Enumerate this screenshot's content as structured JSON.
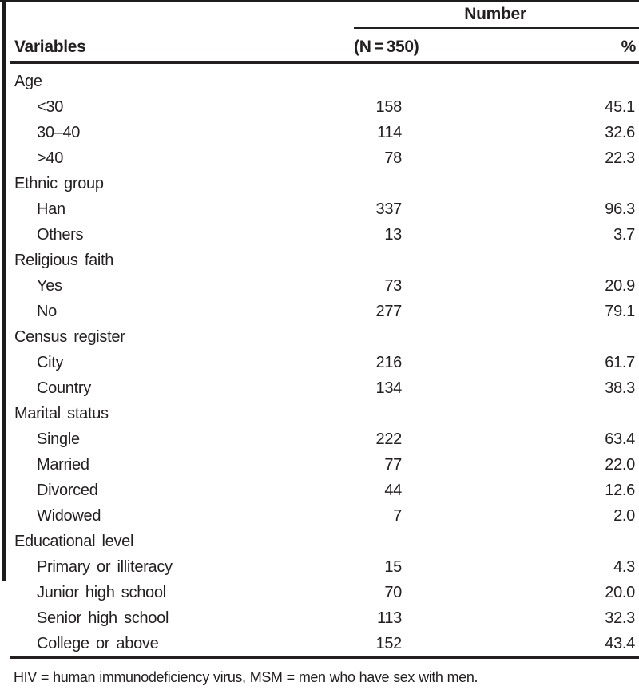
{
  "table": {
    "columns": {
      "variables": "Variables",
      "number_group": "Number",
      "number_sub": "(N = 350)",
      "percent": "%"
    },
    "sections": [
      {
        "label": "Age",
        "rows": [
          {
            "label": "<30",
            "n": "158",
            "pct": "45.1"
          },
          {
            "label": "30–40",
            "n": "114",
            "pct": "32.6"
          },
          {
            "label": ">40",
            "n": "78",
            "pct": "22.3"
          }
        ]
      },
      {
        "label": "Ethnic group",
        "rows": [
          {
            "label": "Han",
            "n": "337",
            "pct": "96.3"
          },
          {
            "label": "Others",
            "n": "13",
            "pct": "3.7"
          }
        ]
      },
      {
        "label": "Religious faith",
        "rows": [
          {
            "label": "Yes",
            "n": "73",
            "pct": "20.9"
          },
          {
            "label": "No",
            "n": "277",
            "pct": "79.1"
          }
        ]
      },
      {
        "label": "Census register",
        "rows": [
          {
            "label": "City",
            "n": "216",
            "pct": "61.7"
          },
          {
            "label": "Country",
            "n": "134",
            "pct": "38.3"
          }
        ]
      },
      {
        "label": "Marital status",
        "rows": [
          {
            "label": "Single",
            "n": "222",
            "pct": "63.4"
          },
          {
            "label": "Married",
            "n": "77",
            "pct": "22.0"
          },
          {
            "label": "Divorced",
            "n": "44",
            "pct": "12.6"
          },
          {
            "label": "Widowed",
            "n": "7",
            "pct": "2.0"
          }
        ]
      },
      {
        "label": "Educational level",
        "rows": [
          {
            "label": "Primary or illiteracy",
            "n": "15",
            "pct": "4.3"
          },
          {
            "label": "Junior high school",
            "n": "70",
            "pct": "20.0"
          },
          {
            "label": "Senior high school",
            "n": "113",
            "pct": "32.3"
          },
          {
            "label": "College or above",
            "n": "152",
            "pct": "43.4"
          }
        ]
      }
    ],
    "footnote": "HIV = human immunodeficiency virus, MSM = men who have sex with men.",
    "colors": {
      "text": "#231f20",
      "rule": "#1c1c1c",
      "background": "#ffffff"
    }
  }
}
